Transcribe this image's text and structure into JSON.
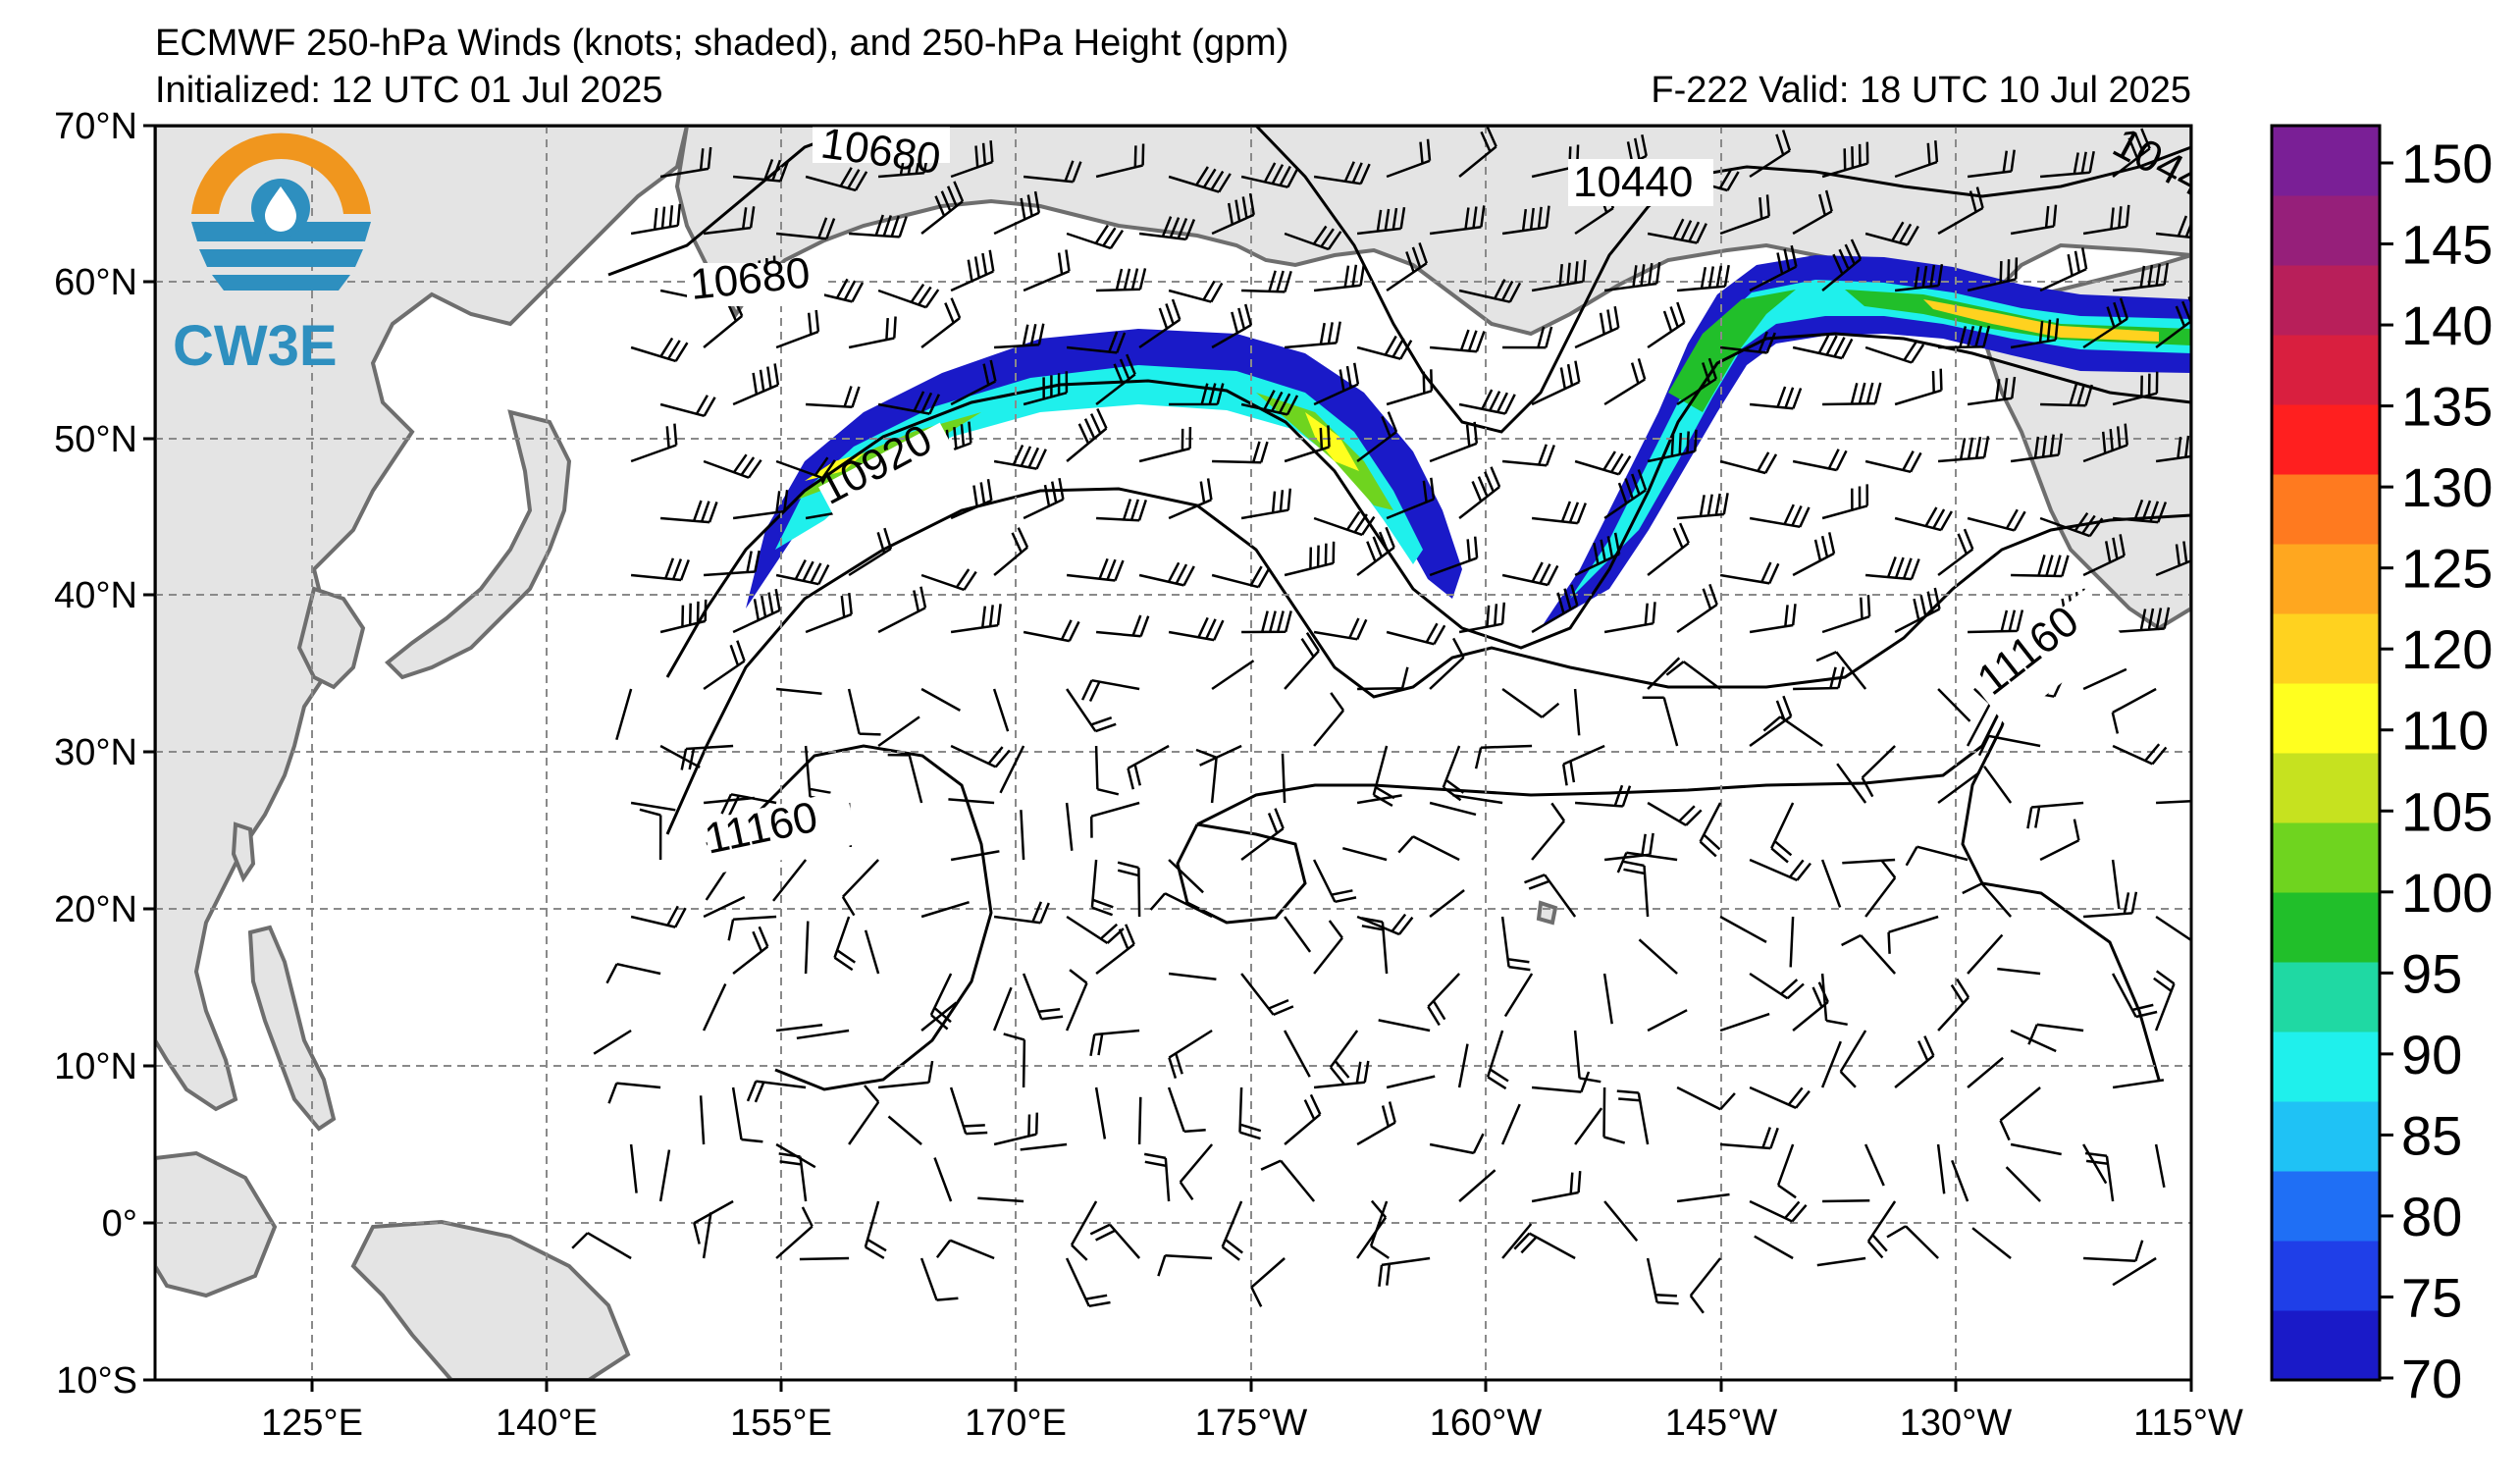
{
  "header": {
    "title": "ECMWF 250-hPa Winds (knots; shaded), and 250-hPa Height (gpm)",
    "initialized": "Initialized: 12 UTC 01 Jul 2025",
    "valid": "F-222  Valid: 18 UTC 10 Jul 2025"
  },
  "logo": {
    "text": "CW3E"
  },
  "axes": {
    "lat_labels": [
      "70°N",
      "60°N",
      "50°N",
      "40°N",
      "30°N",
      "20°N",
      "10°N",
      "0°",
      "10°S"
    ],
    "lon_labels": [
      "125°E",
      "140°E",
      "155°E",
      "170°E",
      "175°W",
      "160°W",
      "145°W",
      "130°W",
      "115°W"
    ]
  },
  "colorbar": {
    "labels": [
      "70",
      "75",
      "80",
      "85",
      "90",
      "95",
      "100",
      "105",
      "110",
      "120",
      "125",
      "130",
      "135",
      "140",
      "145",
      "150"
    ],
    "colors": [
      "#1a1ac8",
      "#1f3fe8",
      "#1f6ff5",
      "#1fc2f5",
      "#1ff0ec",
      "#1fd9a3",
      "#21bf2a",
      "#6fd41f",
      "#c6e21f",
      "#ffff1f",
      "#ffd21f",
      "#ffa71f",
      "#ff7a1f",
      "#ff1f1f",
      "#d91f3f",
      "#b81f5a",
      "#961f7a",
      "#7a1f96"
    ]
  },
  "contours": {
    "labels": [
      "10680",
      "10680",
      "10440",
      "10920",
      "11160",
      "11160",
      "1044"
    ]
  },
  "colors": {
    "land": "#e4e4e4",
    "coast": "#6e6e6e",
    "grid": "#8a8a8a"
  }
}
